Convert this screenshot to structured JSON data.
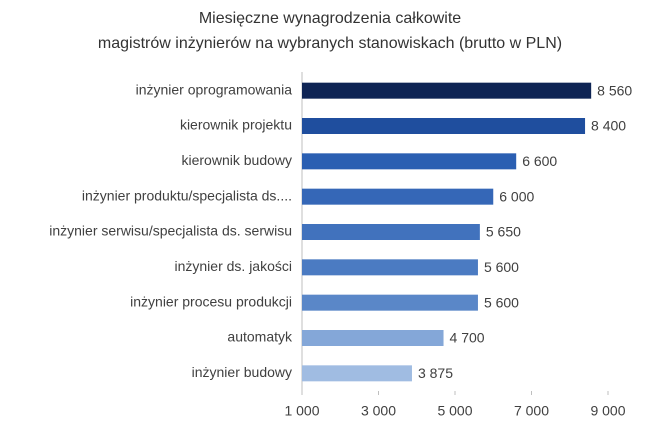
{
  "chart_data": {
    "type": "hbar",
    "title": "Miesięczne wynagrodzenia całkowite",
    "subtitle": "magistrów inżynierów na wybranych stanowiskach (brutto w PLN)",
    "categories": [
      "inżynier oprogramowania",
      "kierownik projektu",
      "kierownik budowy",
      "inżynier produktu/specjalista ds....",
      "inżynier serwisu/specjalista ds. serwisu",
      "inżynier ds. jakości",
      "inżynier procesu produkcji",
      "automatyk",
      "inżynier budowy"
    ],
    "values": [
      8560,
      8400,
      6600,
      6000,
      5650,
      5600,
      5600,
      4700,
      3875
    ],
    "value_labels": [
      "8 560",
      "8 400",
      "6 600",
      "6 000",
      "5 650",
      "5 600",
      "5 600",
      "4 700",
      "3 875"
    ],
    "colors": [
      "#0e2454",
      "#1f4e9e",
      "#2b5fb2",
      "#3567b7",
      "#4172bd",
      "#4b7bc2",
      "#5a87c8",
      "#84a7d8",
      "#a0bce2"
    ],
    "xlim": [
      1000,
      9000
    ],
    "xticks": [
      {
        "value": 1000,
        "label": "1 000"
      },
      {
        "value": 3000,
        "label": "3 000"
      },
      {
        "value": 5000,
        "label": "5 000"
      },
      {
        "value": 7000,
        "label": "7 000"
      },
      {
        "value": 9000,
        "label": "9 000"
      }
    ]
  }
}
